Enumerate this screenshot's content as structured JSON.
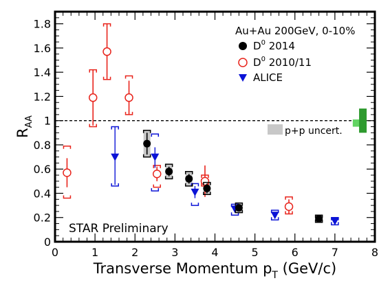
{
  "chart_data": {
    "type": "scatter",
    "title": "",
    "xlabel": "Transverse Momentum p",
    "xlabel_sub": "T",
    "xlabel_unit": " (GeV/c)",
    "ylabel": "R",
    "ylabel_sub": "AA",
    "xlim": [
      0,
      8
    ],
    "ylim": [
      0,
      1.9
    ],
    "xticks": [
      "0",
      "1",
      "2",
      "3",
      "4",
      "5",
      "6",
      "7",
      "8"
    ],
    "yticks": [
      "0",
      "0.2",
      "0.4",
      "0.6",
      "0.8",
      "1",
      "1.2",
      "1.4",
      "1.6",
      "1.8"
    ],
    "grid": false,
    "legend_position": "top-right",
    "annotations": {
      "system": "Au+Au 200GeV, 0-10%",
      "preliminary": "STAR Preliminary",
      "pp_uncert": "p+p uncert."
    },
    "reference_line": {
      "y": 1,
      "style": "dashed"
    },
    "series": [
      {
        "name": "D0 2014",
        "label_main": "D",
        "label_sup": "0",
        "label_rest": " 2014",
        "marker": "filled-circle",
        "color": "#000000",
        "sys_band_color": "#c8c8c8",
        "points": [
          {
            "x": 2.3,
            "y": 0.81,
            "stat": 0.09,
            "sys": 0.11
          },
          {
            "x": 2.85,
            "y": 0.58,
            "stat": 0.04,
            "sys": 0.06
          },
          {
            "x": 3.35,
            "y": 0.52,
            "stat": 0.04,
            "sys": 0.06
          },
          {
            "x": 3.8,
            "y": 0.44,
            "stat": 0.04,
            "sys": 0.05
          },
          {
            "x": 4.6,
            "y": 0.28,
            "stat": 0.03,
            "sys": 0.04
          },
          {
            "x": 6.6,
            "y": 0.19,
            "stat": 0.03,
            "sys": 0.03
          }
        ]
      },
      {
        "name": "D0 2010/11",
        "label_main": "D",
        "label_sup": "0",
        "label_rest": " 2010/11",
        "marker": "open-circle",
        "color": "#e8231b",
        "points": [
          {
            "x": 0.3,
            "y": 0.57,
            "stat": 0.12,
            "sys_lo": 0.21,
            "sys_hi": 0.22
          },
          {
            "x": 0.95,
            "y": 1.19,
            "stat": 0.23,
            "sys_lo": 0.24,
            "sys_hi": 0.23
          },
          {
            "x": 1.3,
            "y": 1.57,
            "stat": 0.23,
            "sys_lo": 0.23,
            "sys_hi": 0.23
          },
          {
            "x": 1.85,
            "y": 1.19,
            "stat": 0.14,
            "sys_lo": 0.14,
            "sys_hi": 0.18
          },
          {
            "x": 2.55,
            "y": 0.56,
            "stat": 0.06,
            "sys_lo": 0.11,
            "sys_hi": 0.07
          },
          {
            "x": 3.75,
            "y": 0.5,
            "stat": 0.13,
            "sys_lo": 0.04,
            "sys_hi": 0.05
          },
          {
            "x": 5.85,
            "y": 0.29,
            "stat": 0.06,
            "sys_lo": 0.06,
            "sys_hi": 0.08
          }
        ]
      },
      {
        "name": "ALICE",
        "label_main": "ALICE",
        "label_sup": "",
        "label_rest": "",
        "marker": "down-triangle",
        "color": "#0b13d6",
        "points": [
          {
            "x": 1.5,
            "y": 0.7,
            "stat_lo": 0.23,
            "stat_hi": 0.25,
            "sys_lo": 0.24,
            "sys_hi": 0.25
          },
          {
            "x": 2.5,
            "y": 0.7,
            "stat_lo": 0.09,
            "stat_hi": 0.08,
            "sys_lo": 0.28,
            "sys_hi": 0.19
          },
          {
            "x": 3.5,
            "y": 0.41,
            "stat_lo": 0.05,
            "stat_hi": 0.05,
            "sys_lo": 0.11,
            "sys_hi": 0.07
          },
          {
            "x": 4.5,
            "y": 0.27,
            "stat_lo": 0.03,
            "stat_hi": 0.03,
            "sys_lo": 0.05,
            "sys_hi": 0.04
          },
          {
            "x": 5.5,
            "y": 0.22,
            "stat_lo": 0.02,
            "stat_hi": 0.02,
            "sys_lo": 0.04,
            "sys_hi": 0.04
          },
          {
            "x": 7.0,
            "y": 0.17,
            "stat_lo": 0.02,
            "stat_hi": 0.02,
            "sys_lo": 0.03,
            "sys_hi": 0.03
          }
        ]
      }
    ],
    "pp_uncert_boxes": [
      {
        "x_center": 7.55,
        "y_lo": 0.95,
        "y_hi": 1.01,
        "color": "#63d463"
      },
      {
        "x_center": 7.7,
        "y_lo": 0.9,
        "y_hi": 1.1,
        "color": "#2e9a2e"
      }
    ]
  }
}
